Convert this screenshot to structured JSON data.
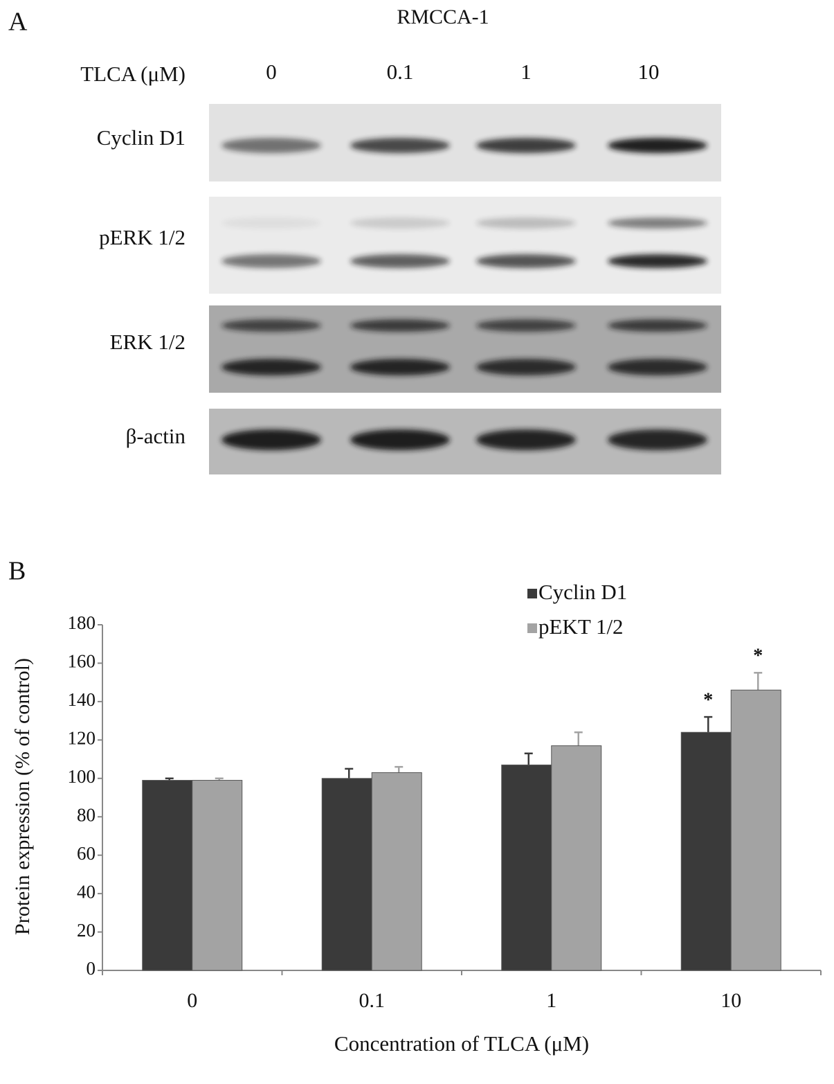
{
  "panel_a": {
    "label": "A",
    "title": "RMCCA-1",
    "treatment_label": "TLCA (μM)",
    "doses": [
      "0",
      "0.1",
      "1",
      "10"
    ],
    "blots": [
      "Cyclin D1",
      "pERK 1/2",
      "ERK 1/2",
      "β-actin"
    ]
  },
  "chart_data": {
    "type": "bar",
    "panel_label": "B",
    "y_label": "Protein expression  (% of control)",
    "x_label": "Concentration of TLCA (μM)",
    "categories": [
      "0",
      "0.1",
      "1",
      "10"
    ],
    "series": [
      {
        "name": "Cyclin D1",
        "color": "#3a3a3a",
        "values": [
          99,
          100,
          107,
          124
        ],
        "errors": [
          1,
          5,
          6,
          8
        ],
        "significance": [
          null,
          null,
          null,
          "*"
        ]
      },
      {
        "name": "pEKT 1/2",
        "color": "#a3a3a3",
        "values": [
          99,
          103,
          117,
          146
        ],
        "errors": [
          1,
          3,
          7,
          9
        ],
        "significance": [
          null,
          null,
          null,
          "*"
        ]
      }
    ],
    "ylim": [
      0,
      180
    ],
    "yticks": [
      0,
      20,
      40,
      60,
      80,
      100,
      120,
      140,
      160,
      180
    ]
  }
}
